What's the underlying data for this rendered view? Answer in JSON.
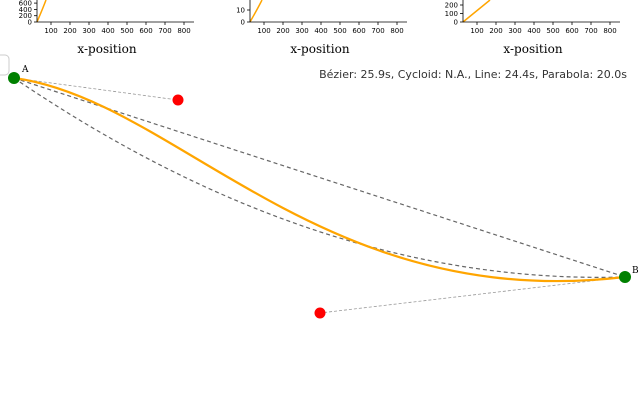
{
  "plots": [
    {
      "x_label": "x-position",
      "x_ticks": [
        100,
        200,
        300,
        400,
        500,
        600,
        700,
        800
      ],
      "y_ticks": [
        0,
        200,
        400,
        600
      ]
    },
    {
      "x_label": "x-position",
      "x_ticks": [
        100,
        200,
        300,
        400,
        500,
        600,
        700,
        800
      ],
      "y_ticks": [
        0,
        10
      ]
    },
    {
      "x_label": "x-position",
      "x_ticks": [
        100,
        200,
        300,
        400,
        500,
        600,
        700,
        800
      ],
      "y_ticks": [
        0,
        100,
        200
      ]
    }
  ],
  "status": "Bézier: 25.9s, Cycloid: N.A., Line: 24.4s, Parabola: 20.0s",
  "points": {
    "start": "A",
    "end": "B"
  }
}
